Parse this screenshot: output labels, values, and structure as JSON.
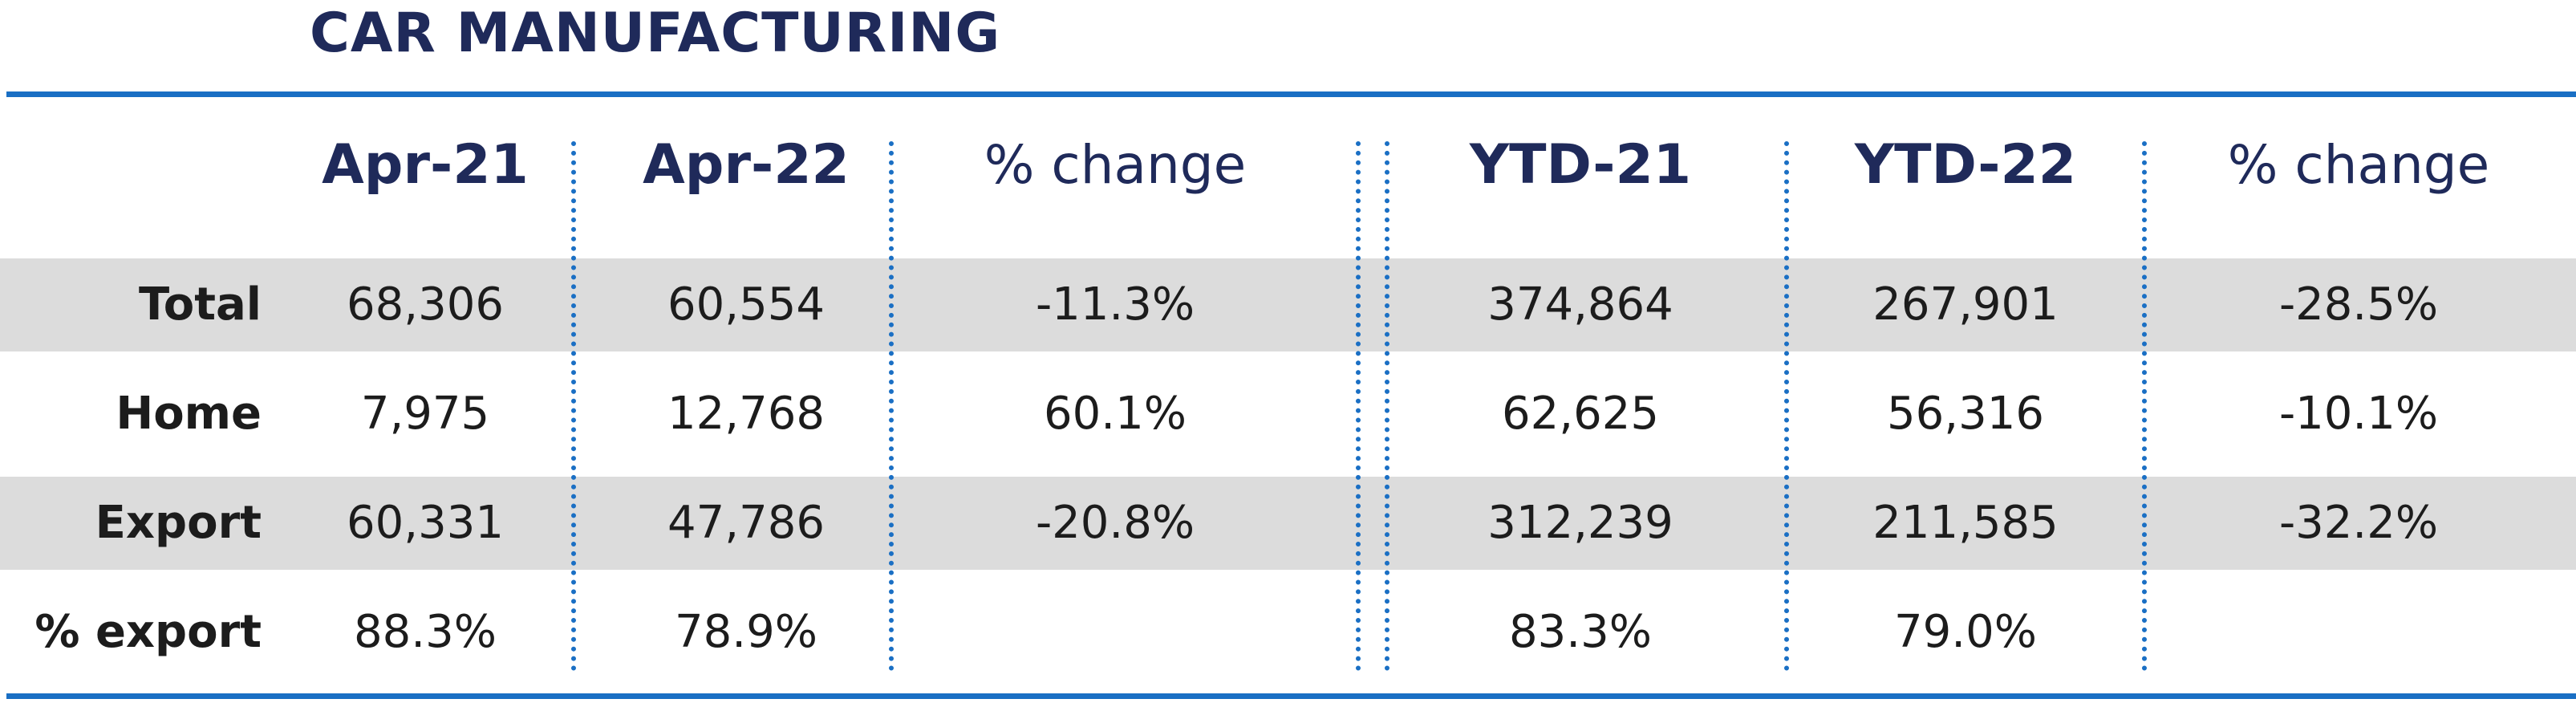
{
  "title": "CAR MANUFACTURING",
  "colors": {
    "accent": "#1a6fc4",
    "title": "#1f2a5a",
    "band": "#dcdcdc"
  },
  "headers": [
    "Apr-21",
    "Apr-22",
    "% change",
    "YTD-21",
    "YTD-22",
    "% change"
  ],
  "rows": [
    {
      "label": "Total",
      "values": [
        "68,306",
        "60,554",
        "-11.3%",
        "374,864",
        "267,901",
        "-28.5%"
      ]
    },
    {
      "label": "Home",
      "values": [
        "7,975",
        "12,768",
        "60.1%",
        "62,625",
        "56,316",
        "-10.1%"
      ]
    },
    {
      "label": "Export",
      "values": [
        "60,331",
        "47,786",
        "-20.8%",
        "312,239",
        "211,585",
        "-32.2%"
      ]
    },
    {
      "label": "% export",
      "values": [
        "88.3%",
        "78.9%",
        "",
        "83.3%",
        "79.0%",
        ""
      ]
    }
  ]
}
